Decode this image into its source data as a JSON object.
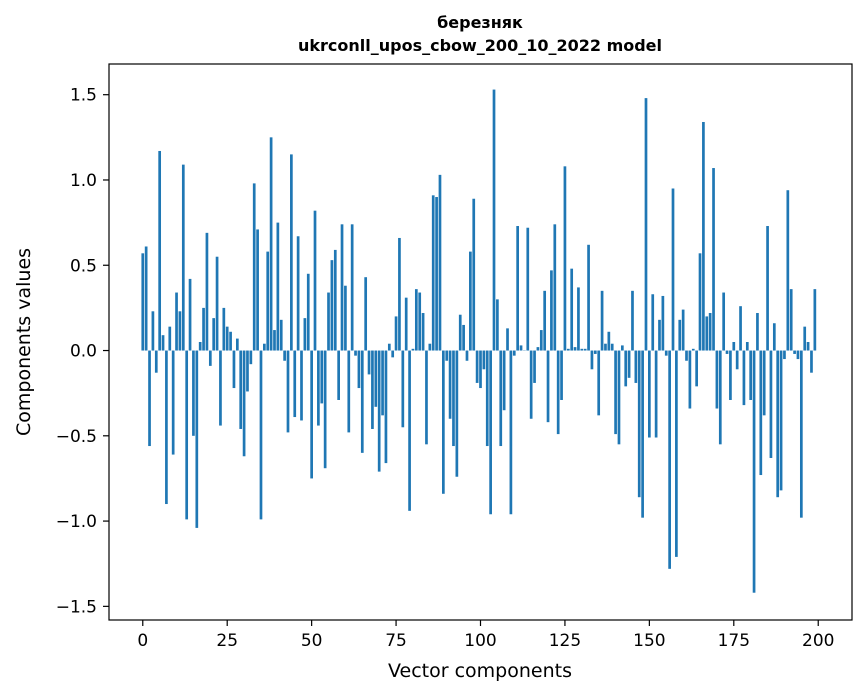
{
  "chart_data": {
    "type": "bar",
    "title_line1": "березняк",
    "title_line2": "ukrconll_upos_cbow_200_10_2022 model",
    "xlabel": "Vector components",
    "ylabel": "Components values",
    "xlim": [
      -10,
      210
    ],
    "ylim": [
      -1.58,
      1.68
    ],
    "xticks": [
      0,
      25,
      50,
      75,
      100,
      125,
      150,
      175,
      200
    ],
    "yticks": [
      -1.5,
      -1.0,
      -0.5,
      0.0,
      0.5,
      1.0,
      1.5
    ],
    "ytick_labels": [
      "−1.5",
      "−1.0",
      "−0.5",
      "0.0",
      "0.5",
      "1.0",
      "1.5"
    ],
    "bar_color": "#1f77b4",
    "values": [
      0.57,
      0.61,
      -0.56,
      0.23,
      -0.13,
      1.17,
      0.09,
      -0.9,
      0.14,
      -0.61,
      0.34,
      0.23,
      1.09,
      -0.99,
      0.42,
      -0.5,
      -1.04,
      0.05,
      0.25,
      0.69,
      -0.09,
      0.19,
      0.55,
      -0.44,
      0.25,
      0.14,
      0.11,
      -0.22,
      0.07,
      -0.46,
      -0.62,
      -0.24,
      -0.08,
      0.98,
      0.71,
      -0.99,
      0.04,
      0.58,
      1.25,
      0.12,
      0.75,
      0.18,
      -0.06,
      -0.48,
      1.15,
      -0.39,
      0.67,
      -0.41,
      0.19,
      0.45,
      -0.75,
      0.82,
      -0.44,
      -0.31,
      -0.69,
      0.34,
      0.53,
      0.59,
      -0.29,
      0.74,
      0.38,
      -0.48,
      0.74,
      -0.03,
      -0.22,
      -0.6,
      0.43,
      -0.14,
      -0.46,
      -0.33,
      -0.71,
      -0.38,
      -0.66,
      0.04,
      -0.04,
      0.2,
      0.66,
      -0.45,
      0.31,
      -0.94,
      0.01,
      0.36,
      0.34,
      0.22,
      -0.55,
      0.04,
      0.91,
      0.9,
      1.03,
      -0.84,
      -0.06,
      -0.4,
      -0.56,
      -0.74,
      0.21,
      0.15,
      -0.06,
      0.58,
      0.89,
      -0.19,
      -0.22,
      -0.11,
      -0.56,
      -0.96,
      1.53,
      0.3,
      -0.56,
      -0.35,
      0.13,
      -0.96,
      -0.03,
      0.73,
      0.03,
      0.0,
      0.72,
      -0.4,
      -0.19,
      0.02,
      0.12,
      0.35,
      -0.42,
      0.47,
      0.74,
      -0.49,
      -0.29,
      1.08,
      0.01,
      0.48,
      0.02,
      0.37,
      0.01,
      0.01,
      0.62,
      -0.11,
      -0.02,
      -0.38,
      0.35,
      0.04,
      0.11,
      0.04,
      -0.49,
      -0.55,
      0.03,
      -0.21,
      -0.16,
      0.35,
      -0.19,
      -0.86,
      -0.98,
      1.48,
      -0.51,
      0.33,
      -0.51,
      0.18,
      0.32,
      -0.03,
      -1.28,
      0.95,
      -1.21,
      0.18,
      0.24,
      -0.06,
      -0.34,
      0.01,
      -0.21,
      0.57,
      1.34,
      0.2,
      0.22,
      1.07,
      -0.34,
      -0.55,
      0.34,
      -0.02,
      -0.29,
      0.05,
      -0.11,
      0.26,
      -0.32,
      0.05,
      -0.29,
      -1.42,
      0.22,
      -0.73,
      -0.38,
      0.73,
      -0.63,
      0.16,
      -0.86,
      -0.82,
      -0.05,
      0.94,
      0.36,
      -0.02,
      -0.05,
      -0.98,
      0.14,
      0.05,
      -0.13,
      0.36
    ]
  }
}
